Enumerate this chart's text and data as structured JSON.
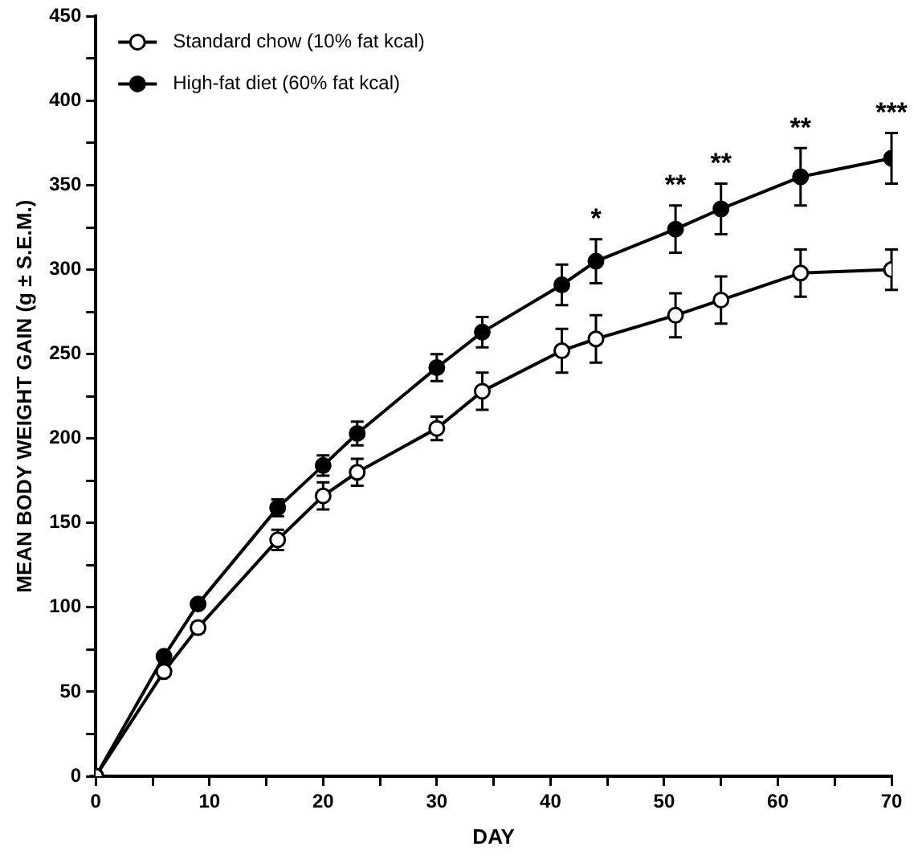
{
  "chart_data": {
    "type": "line",
    "xlabel": "DAY",
    "ylabel": "MEAN BODY WEIGHT GAIN (g ± S.E.M.)",
    "x": [
      0,
      6,
      9,
      16,
      20,
      23,
      30,
      34,
      41,
      44,
      51,
      55,
      62,
      70
    ],
    "series": [
      {
        "name": "Standard chow (10% fat kcal)",
        "color": "#ffffff",
        "values": [
          0,
          62,
          88,
          140,
          166,
          180,
          206,
          228,
          252,
          259,
          273,
          282,
          298,
          300
        ],
        "errors": [
          0,
          3,
          3,
          6,
          8,
          8,
          7,
          11,
          13,
          14,
          13,
          14,
          14,
          12
        ]
      },
      {
        "name": "High-fat diet (60% fat kcal)",
        "color": "#000000",
        "values": [
          0,
          71,
          102,
          159,
          184,
          203,
          242,
          263,
          291,
          305,
          324,
          336,
          355,
          366
        ],
        "errors": [
          0,
          2,
          2,
          5,
          6,
          7,
          8,
          9,
          12,
          13,
          14,
          15,
          17,
          15
        ]
      }
    ],
    "xlim": [
      0,
      70
    ],
    "xticks": [
      0,
      {
        "value": 5,
        "label": null
      },
      10,
      {
        "value": 15,
        "label": null
      },
      20,
      {
        "value": 25,
        "label": null
      },
      30,
      {
        "value": 35,
        "label": null
      },
      40,
      {
        "value": 45,
        "label": null
      },
      50,
      {
        "value": 55,
        "label": null
      },
      60,
      {
        "value": 65,
        "label": null
      },
      70
    ],
    "ylim": [
      0,
      450
    ],
    "yticks": [
      0,
      {
        "value": 25,
        "label": null
      },
      50,
      {
        "value": 75,
        "label": null
      },
      100,
      {
        "value": 125,
        "label": null
      },
      150,
      {
        "value": 175,
        "label": null
      },
      200,
      {
        "value": 225,
        "label": null
      },
      250,
      {
        "value": 275,
        "label": null
      },
      300,
      {
        "value": 325,
        "label": null
      },
      350,
      {
        "value": 375,
        "label": null
      },
      400,
      {
        "value": 425,
        "label": null
      },
      450
    ],
    "annotations": [
      {
        "text": "*",
        "x": 44,
        "y": 305
      },
      {
        "text": "**",
        "x": 51,
        "y": 324
      },
      {
        "text": "**",
        "x": 55,
        "y": 336
      },
      {
        "text": "**",
        "x": 62,
        "y": 355
      },
      {
        "text": "***",
        "x": 70,
        "y": 366
      }
    ],
    "grid": false,
    "legend": "top left",
    "marker": "circle",
    "line_style": "solid"
  }
}
